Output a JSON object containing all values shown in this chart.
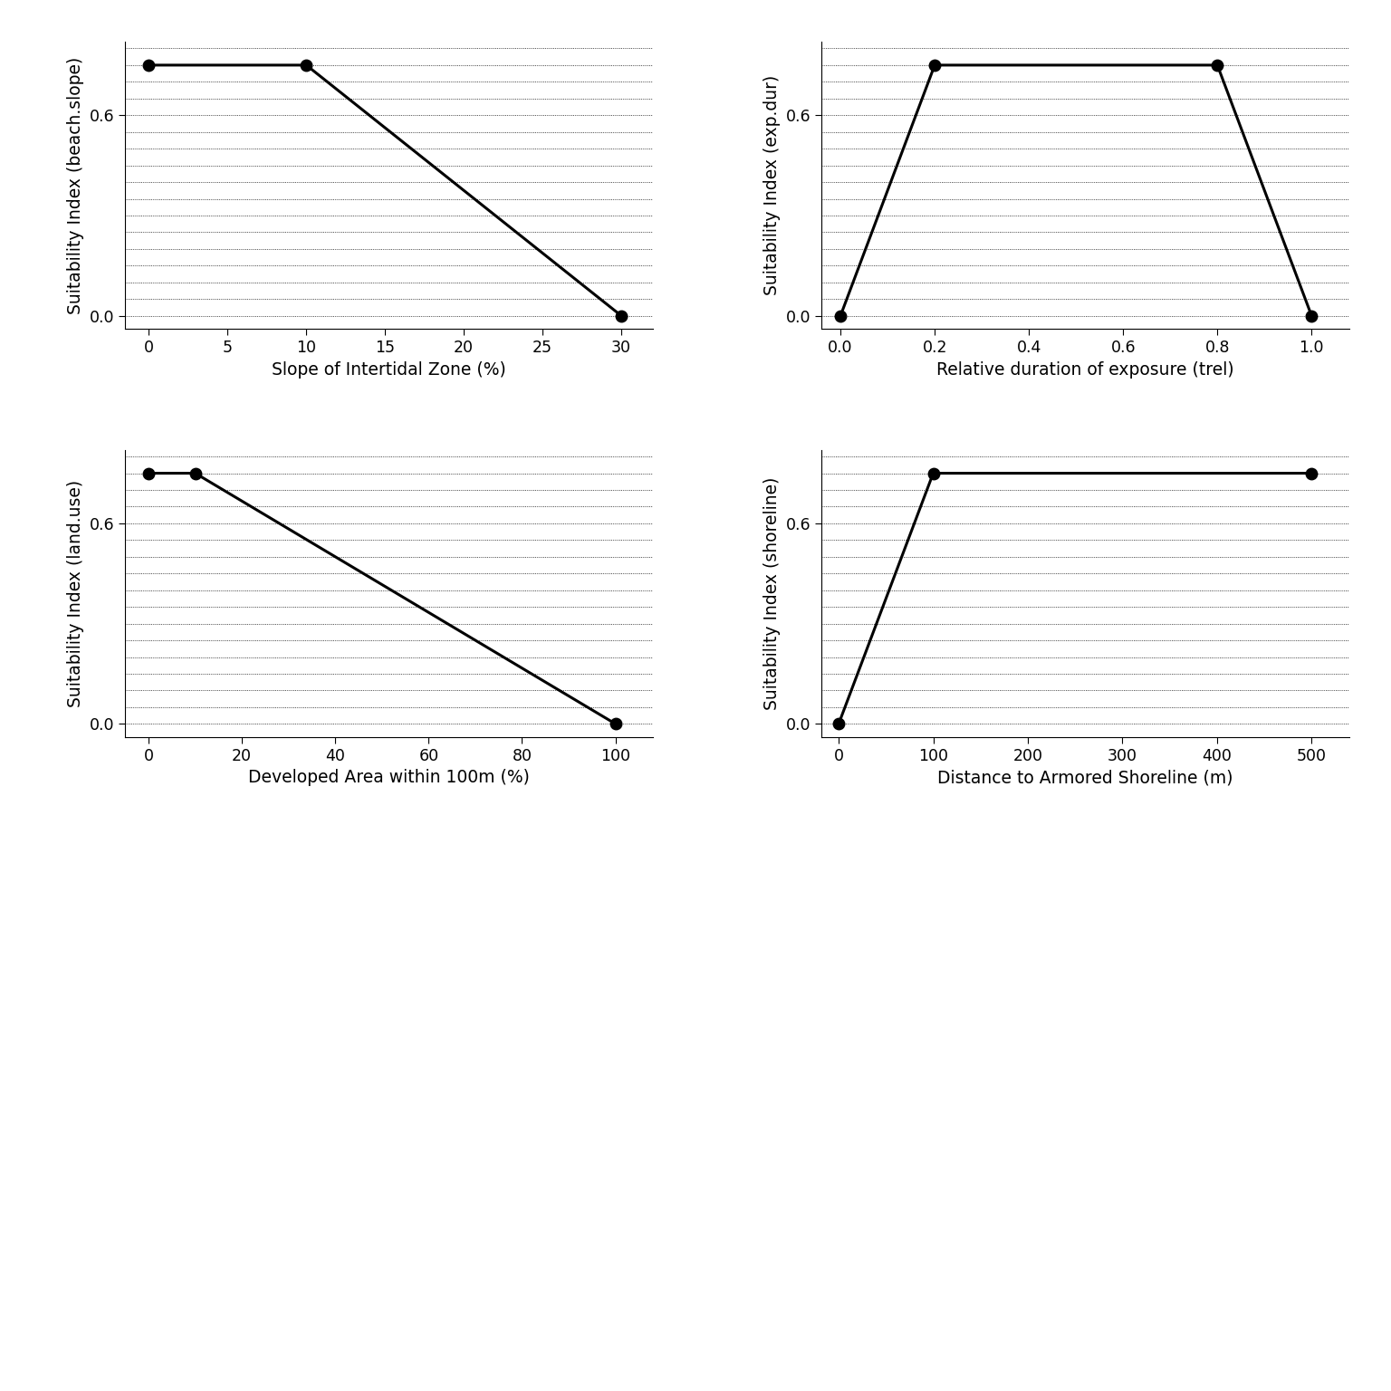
{
  "subplots": [
    {
      "ylabel": "Suitability Index (beach.slope)",
      "xlabel": "Slope of Intertidal Zone (%)",
      "x": [
        0,
        10,
        30
      ],
      "y": [
        0.75,
        0.75,
        0.0
      ],
      "xlim": [
        -1.5,
        32
      ],
      "ylim": [
        -0.04,
        0.82
      ],
      "xticks": [
        0,
        5,
        10,
        15,
        20,
        25,
        30
      ],
      "yticks": [
        0.0,
        0.6
      ],
      "ytick_labels": [
        "0.0",
        "0.6"
      ]
    },
    {
      "ylabel": "Suitability Index (exp.dur)",
      "xlabel": "Relative duration of exposure (trel)",
      "x": [
        0.0,
        0.2,
        0.8,
        1.0
      ],
      "y": [
        0.0,
        0.75,
        0.75,
        0.0
      ],
      "xlim": [
        -0.04,
        1.08
      ],
      "ylim": [
        -0.04,
        0.82
      ],
      "xticks": [
        0.0,
        0.2,
        0.4,
        0.6,
        0.8,
        1.0
      ],
      "yticks": [
        0.0,
        0.6
      ],
      "ytick_labels": [
        "0.0",
        "0.6"
      ]
    },
    {
      "ylabel": "Suitability Index (land.use)",
      "xlabel": "Developed Area within 100m (%)",
      "x": [
        0,
        10,
        100
      ],
      "y": [
        0.75,
        0.75,
        0.0
      ],
      "xlim": [
        -5,
        108
      ],
      "ylim": [
        -0.04,
        0.82
      ],
      "xticks": [
        0,
        20,
        40,
        60,
        80,
        100
      ],
      "yticks": [
        0.0,
        0.6
      ],
      "ytick_labels": [
        "0.0",
        "0.6"
      ]
    },
    {
      "ylabel": "Suitability Index (shoreline)",
      "xlabel": "Distance to Armored Shoreline (m)",
      "x": [
        0,
        100,
        500
      ],
      "y": [
        0.0,
        0.75,
        0.75
      ],
      "xlim": [
        -18,
        540
      ],
      "ylim": [
        -0.04,
        0.82
      ],
      "xticks": [
        0,
        100,
        200,
        300,
        400,
        500
      ],
      "yticks": [
        0.0,
        0.6
      ],
      "ytick_labels": [
        "0.0",
        "0.6"
      ]
    }
  ],
  "figure_bg": "#ffffff",
  "axes_bg": "#ffffff",
  "line_color": "black",
  "marker_color": "black",
  "marker_size": 9,
  "line_width": 2.2,
  "grid_color": "#000000",
  "grid_linestyle": ":",
  "grid_linewidth": 0.6,
  "label_fontsize": 13.5,
  "tick_fontsize": 12.5,
  "grid_minor_step": 0.05
}
